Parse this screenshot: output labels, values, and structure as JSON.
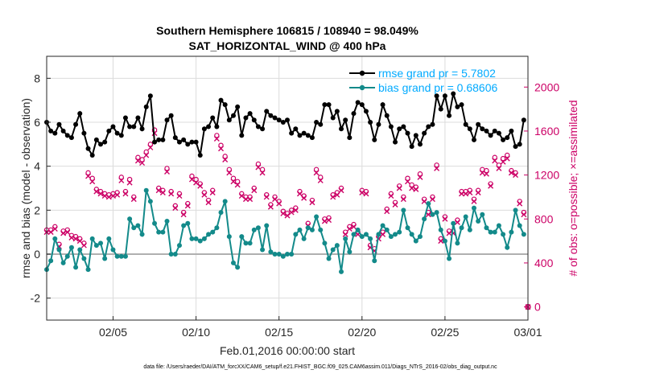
{
  "chart_data": {
    "type": "line",
    "title": "Southern Hemisphere 106815 / 108940 = 98.049%",
    "subtitle": "SAT_HORIZONTAL_WIND @ 400 hPa",
    "xlabel": "Feb.01,2016 00:00:00 start",
    "ylabel": "rmse and bias (model - observation)",
    "ylabel_right": "# of obs: o=possible; ×=assimilated",
    "xlim": [
      1,
      30
    ],
    "ylim": [
      -3,
      9
    ],
    "ylim_right": [
      -120,
      2280
    ],
    "x_ticks": [
      5,
      10,
      15,
      20,
      25,
      30
    ],
    "x_tick_labels": [
      "02/05",
      "02/10",
      "02/15",
      "02/20",
      "02/25",
      "03/01"
    ],
    "y_ticks": [
      -2,
      0,
      2,
      4,
      6,
      8
    ],
    "y_tick_labels": [
      "-2",
      "0",
      "2",
      "4",
      "6",
      "8"
    ],
    "y2_ticks": [
      0,
      400,
      800,
      1200,
      1600,
      2000
    ],
    "y2_tick_labels": [
      "0",
      "400",
      "800",
      "1200",
      "1600",
      "2000"
    ],
    "grid": true,
    "legend": [
      "rmse grand pr = 5.7802",
      "bias grand pr = 0.68606"
    ],
    "legend_position": "top-right",
    "series": [
      {
        "name": "rmse",
        "color": "#000000",
        "x": [
          1.0,
          1.25,
          1.5,
          1.75,
          2.0,
          2.25,
          2.5,
          2.75,
          3.0,
          3.25,
          3.5,
          3.75,
          4.0,
          4.25,
          4.5,
          4.75,
          5.0,
          5.25,
          5.5,
          5.75,
          6.0,
          6.25,
          6.5,
          6.75,
          7.0,
          7.25,
          7.5,
          7.75,
          8.0,
          8.25,
          8.5,
          8.75,
          9.0,
          9.25,
          9.5,
          9.75,
          10.0,
          10.25,
          10.5,
          10.75,
          11.0,
          11.25,
          11.5,
          11.75,
          12.0,
          12.25,
          12.5,
          12.75,
          13.0,
          13.25,
          13.5,
          13.75,
          14.0,
          14.25,
          14.5,
          14.75,
          15.0,
          15.25,
          15.5,
          15.75,
          16.0,
          16.25,
          16.5,
          16.75,
          17.0,
          17.25,
          17.5,
          17.75,
          18.0,
          18.25,
          18.5,
          18.75,
          19.0,
          19.25,
          19.5,
          19.75,
          20.0,
          20.25,
          20.5,
          20.75,
          21.0,
          21.25,
          21.5,
          21.75,
          22.0,
          22.25,
          22.5,
          22.75,
          23.0,
          23.25,
          23.5,
          23.75,
          24.0,
          24.25,
          24.5,
          24.75,
          25.0,
          25.25,
          25.5,
          25.75,
          26.0,
          26.25,
          26.5,
          26.75,
          27.0,
          27.25,
          27.5,
          27.75,
          28.0,
          28.25,
          28.5,
          28.75,
          29.0,
          29.25,
          29.5,
          29.75
        ],
        "values": [
          6.0,
          5.6,
          5.5,
          5.9,
          5.6,
          5.4,
          5.3,
          5.9,
          6.4,
          5.5,
          4.8,
          4.5,
          5.2,
          5.0,
          5.1,
          5.6,
          5.8,
          5.5,
          5.4,
          6.2,
          5.8,
          5.8,
          6.2,
          5.7,
          6.7,
          7.2,
          5.1,
          5.2,
          5.2,
          6.1,
          6.3,
          5.3,
          5.1,
          5.2,
          5.0,
          5.1,
          5.1,
          4.5,
          5.7,
          5.8,
          6.2,
          5.8,
          7.0,
          6.8,
          6.1,
          6.3,
          6.7,
          5.4,
          6.2,
          6.4,
          6.1,
          5.8,
          5.7,
          6.5,
          6.3,
          6.2,
          6.1,
          6.0,
          6.1,
          5.5,
          5.7,
          5.4,
          5.5,
          5.4,
          5.3,
          6.0,
          5.9,
          6.8,
          6.8,
          6.2,
          6.5,
          5.7,
          6.1,
          5.3,
          6.4,
          6.9,
          6.8,
          6.5,
          6.0,
          5.2,
          5.9,
          6.8,
          6.3,
          5.8,
          5.1,
          5.7,
          5.8,
          5.5,
          4.9,
          5.4,
          5.0,
          5.5,
          5.8,
          5.9,
          7.2,
          6.6,
          7.2,
          6.3,
          7.3,
          6.7,
          6.8,
          5.9,
          5.7,
          5.2,
          5.9,
          5.7,
          5.6,
          5.4,
          5.6,
          5.5,
          5.2,
          5.3,
          5.6,
          4.9,
          5.0,
          6.1
        ]
      },
      {
        "name": "bias",
        "color": "#138a8a",
        "x": [
          1.0,
          1.25,
          1.5,
          1.75,
          2.0,
          2.25,
          2.5,
          2.75,
          3.0,
          3.25,
          3.5,
          3.75,
          4.0,
          4.25,
          4.5,
          4.75,
          5.0,
          5.25,
          5.5,
          5.75,
          6.0,
          6.25,
          6.5,
          6.75,
          7.0,
          7.25,
          7.5,
          7.75,
          8.0,
          8.25,
          8.5,
          8.75,
          9.0,
          9.25,
          9.5,
          9.75,
          10.0,
          10.25,
          10.5,
          10.75,
          11.0,
          11.25,
          11.5,
          11.75,
          12.0,
          12.25,
          12.5,
          12.75,
          13.0,
          13.25,
          13.5,
          13.75,
          14.0,
          14.25,
          14.5,
          14.75,
          15.0,
          15.25,
          15.5,
          15.75,
          16.0,
          16.25,
          16.5,
          16.75,
          17.0,
          17.25,
          17.5,
          17.75,
          18.0,
          18.25,
          18.5,
          18.75,
          19.0,
          19.25,
          19.5,
          19.75,
          20.0,
          20.25,
          20.5,
          20.75,
          21.0,
          21.25,
          21.5,
          21.75,
          22.0,
          22.25,
          22.5,
          22.75,
          23.0,
          23.25,
          23.5,
          23.75,
          24.0,
          24.25,
          24.5,
          24.75,
          25.0,
          25.25,
          25.5,
          25.75,
          26.0,
          26.25,
          26.5,
          26.75,
          27.0,
          27.25,
          27.5,
          27.75,
          28.0,
          28.25,
          28.5,
          28.75,
          29.0,
          29.25,
          29.5,
          29.75
        ],
        "values": [
          -0.7,
          -0.3,
          0.7,
          0.2,
          -0.4,
          -0.1,
          0.3,
          -0.6,
          0.2,
          -0.2,
          -0.7,
          0.7,
          0.4,
          0.5,
          -0.2,
          0.7,
          0.2,
          -0.1,
          -0.1,
          -0.1,
          1.6,
          1.2,
          1.3,
          0.9,
          2.9,
          2.4,
          1.4,
          1.0,
          1.0,
          1.5,
          0.0,
          0.0,
          0.4,
          1.3,
          1.4,
          0.7,
          0.7,
          0.6,
          0.7,
          0.9,
          1.0,
          1.2,
          1.9,
          2.4,
          0.8,
          -0.4,
          -0.6,
          0.8,
          0.5,
          0.5,
          1.1,
          1.2,
          0.2,
          1.3,
          0.1,
          0.0,
          0.0,
          -0.1,
          0.0,
          0.0,
          0.9,
          1.1,
          0.7,
          1.2,
          1.1,
          1.7,
          1.1,
          0.5,
          -0.2,
          0.2,
          0.4,
          -0.8,
          0.7,
          0.1,
          0.9,
          1.1,
          0.8,
          0.9,
          0.7,
          -0.3,
          0.9,
          1.3,
          1.1,
          0.8,
          0.9,
          1.0,
          2.0,
          1.2,
          0.9,
          0.6,
          0.8,
          1.6,
          2.3,
          1.8,
          1.9,
          1.1,
          0.6,
          -0.2,
          1.4,
          0.5,
          1.2,
          1.7,
          1.1,
          2.1,
          1.5,
          1.8,
          1.2,
          1.0,
          1.0,
          1.3,
          0.9,
          0.3,
          1.0,
          2.0,
          1.3,
          0.9
        ]
      },
      {
        "name": "obs possible",
        "color": "#cc0066",
        "axis": "right",
        "x": [
          1.0,
          1.25,
          1.5,
          1.75,
          2.0,
          2.25,
          2.5,
          2.75,
          3.0,
          3.25,
          3.5,
          3.75,
          4.0,
          4.25,
          4.5,
          4.75,
          5.0,
          5.25,
          5.5,
          5.75,
          6.0,
          6.25,
          6.5,
          6.75,
          7.0,
          7.25,
          7.5,
          7.75,
          8.0,
          8.25,
          8.5,
          8.75,
          9.0,
          9.25,
          9.5,
          9.75,
          10.0,
          10.25,
          10.5,
          10.75,
          11.0,
          11.25,
          11.5,
          11.75,
          12.0,
          12.25,
          12.5,
          12.75,
          13.0,
          13.25,
          13.5,
          13.75,
          14.0,
          14.25,
          14.5,
          14.75,
          15.0,
          15.25,
          15.5,
          15.75,
          16.0,
          16.25,
          16.5,
          16.75,
          17.0,
          17.25,
          17.5,
          17.75,
          18.0,
          18.25,
          18.5,
          18.75,
          19.0,
          19.25,
          19.5,
          19.75,
          20.0,
          20.25,
          20.5,
          20.75,
          21.0,
          21.25,
          21.5,
          21.75,
          22.0,
          22.25,
          22.5,
          22.75,
          23.0,
          23.25,
          23.5,
          23.75,
          24.0,
          24.25,
          24.5,
          24.75,
          25.0,
          25.25,
          25.5,
          25.75,
          26.0,
          26.25,
          26.5,
          26.75,
          27.0,
          27.25,
          27.5,
          27.75,
          28.0,
          28.25,
          28.5,
          28.75,
          29.0,
          29.25,
          29.5,
          29.75
        ],
        "values": [
          700,
          700,
          730,
          570,
          690,
          700,
          650,
          640,
          620,
          580,
          1220,
          1170,
          1070,
          1050,
          1030,
          1020,
          1030,
          1040,
          1180,
          1050,
          1160,
          1000,
          1360,
          1340,
          1410,
          1480,
          1610,
          1080,
          1060,
          1260,
          1050,
          920,
          1030,
          860,
          940,
          1190,
          1160,
          1120,
          1040,
          970,
          1060,
          1560,
          1470,
          1370,
          1250,
          1170,
          1140,
          1030,
          1000,
          1000,
          1080,
          1300,
          1250,
          1020,
          930,
          1000,
          960,
          870,
          850,
          880,
          900,
          1050,
          1010,
          760,
          970,
          1250,
          1180,
          800,
          810,
          1020,
          1040,
          1080,
          680,
          730,
          750,
          680,
          1060,
          1050,
          560,
          530,
          640,
          680,
          890,
          1030,
          950,
          1100,
          1000,
          1170,
          1110,
          1090,
          1210,
          980,
          860,
          1000,
          1290,
          620,
          820,
          690,
          690,
          790,
          1050,
          1050,
          1060,
          980,
          1060,
          1250,
          1240,
          1120,
          1360,
          1290,
          1350,
          1380,
          1240,
          1220,
          960,
          860
        ]
      },
      {
        "name": "obs assimilated",
        "color": "#cc0066",
        "axis": "right",
        "x": [
          1.0,
          1.25,
          1.5,
          1.75,
          2.0,
          2.25,
          2.5,
          2.75,
          3.0,
          3.25,
          3.5,
          3.75,
          4.0,
          4.25,
          4.5,
          4.75,
          5.0,
          5.25,
          5.5,
          5.75,
          6.0,
          6.25,
          6.5,
          6.75,
          7.0,
          7.25,
          7.5,
          7.75,
          8.0,
          8.25,
          8.5,
          8.75,
          9.0,
          9.25,
          9.5,
          9.75,
          10.0,
          10.25,
          10.5,
          10.75,
          11.0,
          11.25,
          11.5,
          11.75,
          12.0,
          12.25,
          12.5,
          12.75,
          13.0,
          13.25,
          13.5,
          13.75,
          14.0,
          14.25,
          14.5,
          14.75,
          15.0,
          15.25,
          15.5,
          15.75,
          16.0,
          16.25,
          16.5,
          16.75,
          17.0,
          17.25,
          17.5,
          17.75,
          18.0,
          18.25,
          18.5,
          18.75,
          19.0,
          19.25,
          19.5,
          19.75,
          20.0,
          20.25,
          20.5,
          20.75,
          21.0,
          21.25,
          21.5,
          21.75,
          22.0,
          22.25,
          22.5,
          22.75,
          23.0,
          23.25,
          23.5,
          23.75,
          24.0,
          24.25,
          24.5,
          24.75,
          25.0,
          25.25,
          25.5,
          25.75,
          26.0,
          26.25,
          26.5,
          26.75,
          27.0,
          27.25,
          27.5,
          27.75,
          28.0,
          28.25,
          28.5,
          28.75,
          29.0,
          29.25,
          29.5,
          29.75
        ],
        "values": [
          680,
          680,
          710,
          550,
          670,
          680,
          630,
          620,
          600,
          560,
          1190,
          1140,
          1050,
          1030,
          1010,
          1000,
          1010,
          1020,
          1150,
          1030,
          1130,
          980,
          1330,
          1310,
          1380,
          1450,
          1580,
          1060,
          1040,
          1230,
          1030,
          900,
          1010,
          840,
          920,
          1160,
          1130,
          1100,
          1020,
          950,
          1040,
          1530,
          1440,
          1340,
          1220,
          1140,
          1110,
          1010,
          980,
          980,
          1060,
          1270,
          1220,
          1000,
          910,
          980,
          940,
          850,
          830,
          860,
          880,
          1030,
          990,
          740,
          950,
          1220,
          1150,
          780,
          790,
          1000,
          1020,
          1060,
          660,
          710,
          730,
          660,
          1040,
          1030,
          540,
          510,
          620,
          660,
          870,
          1010,
          930,
          1080,
          980,
          1140,
          1080,
          1070,
          1180,
          960,
          840,
          980,
          1260,
          600,
          800,
          670,
          670,
          770,
          1030,
          1030,
          1040,
          960,
          1040,
          1220,
          1210,
          1100,
          1330,
          1260,
          1320,
          1350,
          1220,
          1200,
          940,
          840
        ]
      }
    ],
    "end_marker": {
      "x": 30,
      "value": 0,
      "axis": "right",
      "color": "#cc0066"
    }
  },
  "footer": {
    "data_file": "data file: /Users/raeder/DAI/ATM_forcXX/CAM6_setup/f.e21.FHIST_BGC.f09_025.CAM6assim.011/Diags_NTrS_2016-02/obs_diag_output.nc"
  },
  "colors": {
    "rmse": "#000000",
    "bias": "#138a8a",
    "obs": "#cc0066",
    "legend_text": "#00aaff",
    "grid": "#dcdcdc",
    "zero_line": "#b0b0b0"
  }
}
